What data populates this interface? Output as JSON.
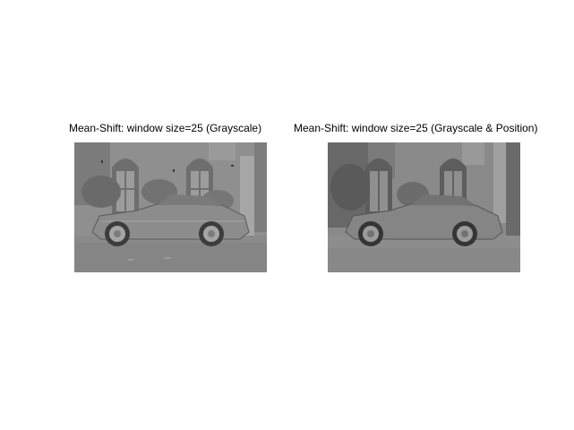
{
  "figure": {
    "left_title": "Mean-Shift: window size=25 (Grayscale)",
    "right_title": "Mean-Shift: window size=25 (Grayscale & Position)"
  },
  "images": {
    "left": {
      "subject": "car-in-front-of-building",
      "palette": [
        "#8e8e8e",
        "#7a7a7a",
        "#a3a3a3",
        "#5e5e5e",
        "#3a3a3a"
      ]
    },
    "right": {
      "subject": "car-in-front-of-building",
      "palette": [
        "#8a8a8a",
        "#6c6c6c",
        "#9a9a9a",
        "#555555",
        "#333333"
      ]
    }
  }
}
